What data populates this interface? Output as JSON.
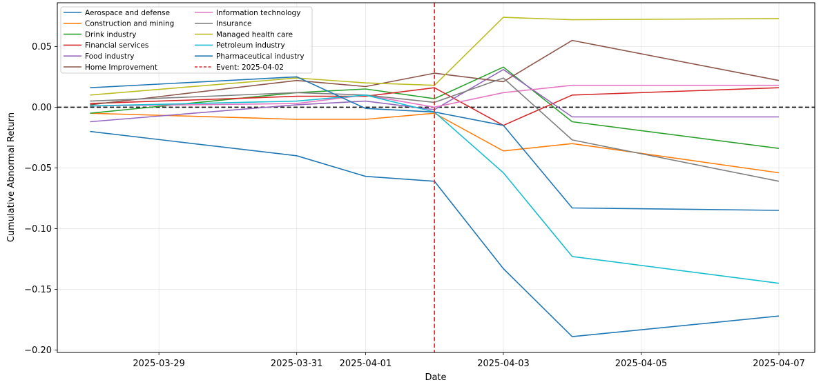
{
  "chart_data": {
    "type": "line",
    "title": "",
    "xlabel": "Date",
    "ylabel": "Cumulative Abnormal Return",
    "x": [
      "2025-03-28",
      "2025-03-31",
      "2025-04-01",
      "2025-04-02",
      "2025-04-03",
      "2025-04-04",
      "2025-04-07"
    ],
    "x_ticks": [
      "2025-03-29",
      "2025-03-31",
      "2025-04-01",
      "2025-04-03",
      "2025-04-05",
      "2025-04-07"
    ],
    "x_range": [
      "2025-03-27 12:36",
      "2025-04-07 12:30"
    ],
    "y_ticks": [
      0.05,
      0.0,
      -0.05,
      -0.1,
      -0.15,
      -0.2
    ],
    "y_tick_labels": [
      "0.05",
      "0.00",
      "−0.05",
      "−0.10",
      "−0.15",
      "−0.20"
    ],
    "ylim": [
      -0.202,
      0.086
    ],
    "grid": true,
    "legend_position": "top-left",
    "legend_columns": 2,
    "event": {
      "date": "2025-04-02",
      "label": "Event: 2025-04-02",
      "color": "#d62728",
      "style": "dashed"
    },
    "zero_line": {
      "y": 0,
      "color": "#000000",
      "style": "dashed"
    },
    "series": [
      {
        "name": "Aerospace and defense",
        "color": "#1f77b4",
        "values": [
          -0.02,
          -0.04,
          -0.057,
          -0.061,
          -0.133,
          -0.189,
          -0.172
        ]
      },
      {
        "name": "Construction and mining",
        "color": "#ff7f0e",
        "values": [
          -0.005,
          -0.01,
          -0.01,
          -0.005,
          -0.036,
          -0.03,
          -0.054
        ]
      },
      {
        "name": "Drink industry",
        "color": "#2ca02c",
        "values": [
          -0.005,
          0.012,
          0.015,
          0.007,
          0.033,
          -0.012,
          -0.034
        ]
      },
      {
        "name": "Financial services",
        "color": "#d62728",
        "values": [
          0.003,
          0.009,
          0.009,
          0.016,
          -0.015,
          0.01,
          0.016
        ]
      },
      {
        "name": "Food industry",
        "color": "#9467bd",
        "values": [
          -0.012,
          0.002,
          0.005,
          -0.002,
          0.031,
          -0.008,
          -0.008
        ]
      },
      {
        "name": "Home Improvement",
        "color": "#8c564b",
        "values": [
          0.002,
          0.022,
          0.017,
          0.028,
          0.021,
          0.055,
          0.022
        ]
      },
      {
        "name": "Information technology",
        "color": "#e377c2",
        "values": [
          0.001,
          0.003,
          0.01,
          0.0,
          0.012,
          0.018,
          0.018
        ]
      },
      {
        "name": "Insurance",
        "color": "#7f7f7f",
        "values": [
          0.005,
          0.012,
          0.01,
          0.004,
          0.024,
          -0.027,
          -0.061
        ]
      },
      {
        "name": "Managed health care",
        "color": "#bcbd22",
        "values": [
          0.01,
          0.024,
          0.02,
          0.018,
          0.074,
          0.072,
          0.073
        ]
      },
      {
        "name": "Petroleum industry",
        "color": "#17becf",
        "values": [
          0.001,
          0.005,
          0.01,
          -0.004,
          -0.054,
          -0.123,
          -0.145
        ]
      },
      {
        "name": "Pharmaceutical industry",
        "color": "#1f77b4",
        "values": [
          0.016,
          0.025,
          -0.001,
          -0.004,
          -0.015,
          -0.083,
          -0.085
        ]
      }
    ]
  }
}
